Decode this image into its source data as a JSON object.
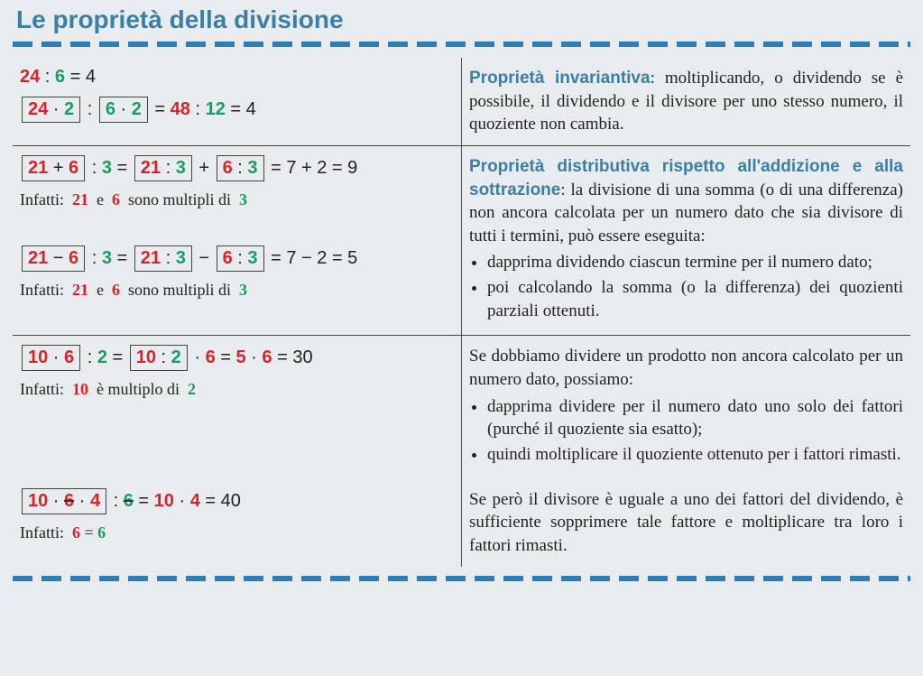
{
  "title": "Le proprietà della divisione",
  "sections": [
    {
      "expr_html": "<div class='expr'><span class='red'>24</span> : <span class='green'>6</span> = 4</div><div class='expr'><span class='boxed'><span class='red'>24</span> · <span class='green'>2</span></span> : <span class='boxed'><span class='green'>6</span> · <span class='green'>2</span></span> = <span class='red'>48</span> : <span class='green'>12</span> = 4</div>",
      "term": "Proprietà invariantiva",
      "desc": ": moltiplicando, o dividendo se è possibile, il dividendo e il divisore per uno stesso numero, il quoziente non cambia.",
      "bottom_rule": true
    },
    {
      "expr_html": "<div class='expr'><span class='boxed'><span class='red'>21</span> + <span class='red'>6</span></span> : <span class='green'>3</span> = <span class='boxed'><span class='red'>21</span> : <span class='green'>3</span></span> + <span class='boxed'><span class='red'>6</span> : <span class='green'>3</span></span> = 7 + 2 = 9</div><div class='note'>Infatti:&nbsp;&nbsp;<span class='red'>21</span>&nbsp; e &nbsp;<span class='red'>6</span>&nbsp; sono multipli di &nbsp;<span class='green'>3</span></div><div style='height:40px'></div><div class='expr'><span class='boxed'><span class='red'>21</span> − <span class='red'>6</span></span> : <span class='green'>3</span> = <span class='boxed'><span class='red'>21</span> : <span class='green'>3</span></span> − <span class='boxed'><span class='red'>6</span> : <span class='green'>3</span></span> = 7 − 2 = 5</div><div class='note'>Infatti:&nbsp;&nbsp;<span class='red'>21</span>&nbsp; e &nbsp;<span class='red'>6</span>&nbsp; sono multipli di &nbsp;<span class='green'>3</span></div>",
      "term": "Proprietà distributiva rispetto all'addizione e alla sottrazione",
      "desc": ": la divisione di una somma (o di una differenza) non ancora calcolata per un numero dato che sia divisore di tutti i termini, può essere eseguita:",
      "bullets": [
        "dapprima dividendo ciascun termine per il numero dato;",
        "poi calcolando la somma (o la differenza) dei quozienti parziali ottenuti."
      ],
      "bottom_rule": true
    },
    {
      "expr_html": "<div class='expr'><span class='boxed'><span class='red'>10</span> · <span class='red'>6</span></span> : <span class='green'>2</span> = <span class='boxed'><span class='red'>10</span> : <span class='green'>2</span></span> · <span class='red'>6</span> = <span class='red'>5</span> · <span class='red'>6</span> = 30</div><div class='note'>Infatti:&nbsp;&nbsp;<span class='red'>10</span>&nbsp; è multiplo di &nbsp;<span class='green'>2</span></div>",
      "desc": "Se dobbiamo dividere un prodotto non ancora calcolato per un numero dato, possiamo:",
      "bullets": [
        "dapprima dividere per il numero dato uno solo dei fattori (purché il quoziente sia esatto);",
        "quindi moltiplicare il quoziente ottenuto per i fattori rimasti."
      ],
      "bottom_rule": false
    },
    {
      "expr_html": "<div class='expr'><span class='boxed'><span class='red'>10</span> · <span class='red strike'>6</span> · <span class='red'>4</span></span> : <span class='green strike'>6</span> = <span class='red'>10</span> · <span class='red'>4</span> = 40</div><div class='note'>Infatti:&nbsp;&nbsp;<span class='red'>6</span> = <span class='green'>6</span></div>",
      "desc": "Se però il divisore è uguale a uno dei fattori del dividendo, è sufficiente sopprimere tale fattore e moltiplicare tra loro i fattori rimasti.",
      "bottom_rule": false
    }
  ]
}
